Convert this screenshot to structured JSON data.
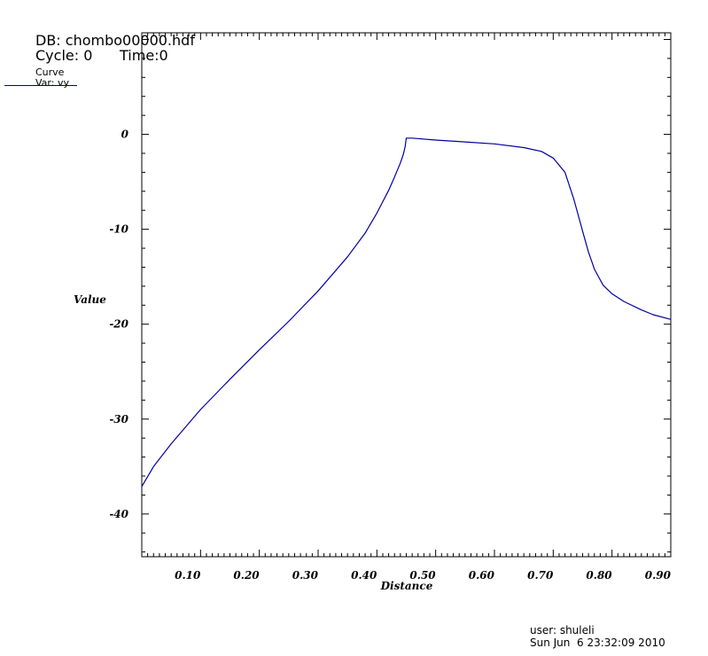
{
  "header": {
    "db": "DB: chombo00000.hdf",
    "cycle": "Cycle: 0",
    "time": "Time:0"
  },
  "legend": {
    "curve": "Curve",
    "var": "Var: vy",
    "color": "#0000a0"
  },
  "footer": {
    "user": "user: shuleli",
    "date": "Sun Jun  6 23:32:09 2010"
  },
  "chart_data": {
    "type": "line",
    "xlabel": "Distance",
    "ylabel": "Value",
    "xlim": [
      0.0,
      0.9
    ],
    "ylim": [
      -44.5,
      10.7
    ],
    "x_ticks": [
      0.1,
      0.2,
      0.3,
      0.4,
      0.5,
      0.6,
      0.7,
      0.8,
      0.9
    ],
    "x_tick_labels": [
      "0.10",
      "0.20",
      "0.30",
      "0.40",
      "0.50",
      "0.60",
      "0.70",
      "0.80",
      "0.90"
    ],
    "y_ticks": [
      0,
      -10,
      -20,
      -30,
      -40
    ],
    "y_tick_labels": [
      "0",
      "-10",
      "-20",
      "-30",
      "-40"
    ],
    "grid": false,
    "series": [
      {
        "color": "#0000a0",
        "x": [
          0.0,
          0.02,
          0.05,
          0.1,
          0.15,
          0.2,
          0.25,
          0.3,
          0.35,
          0.38,
          0.4,
          0.42,
          0.43,
          0.44,
          0.445,
          0.448,
          0.45,
          0.451,
          0.46,
          0.5,
          0.55,
          0.6,
          0.65,
          0.68,
          0.7,
          0.72,
          0.735,
          0.75,
          0.76,
          0.77,
          0.785,
          0.8,
          0.82,
          0.85,
          0.87,
          0.9
        ],
        "y": [
          -37.1,
          -35.0,
          -32.6,
          -29.0,
          -25.8,
          -22.7,
          -19.7,
          -16.5,
          -12.9,
          -10.4,
          -8.3,
          -5.9,
          -4.5,
          -3.0,
          -2.1,
          -1.3,
          -0.4,
          -0.4,
          -0.4,
          -0.6,
          -0.8,
          -1.0,
          -1.4,
          -1.8,
          -2.5,
          -4.0,
          -6.8,
          -10.2,
          -12.4,
          -14.2,
          -15.9,
          -16.8,
          -17.6,
          -18.5,
          -19.0,
          -19.5
        ]
      }
    ]
  }
}
